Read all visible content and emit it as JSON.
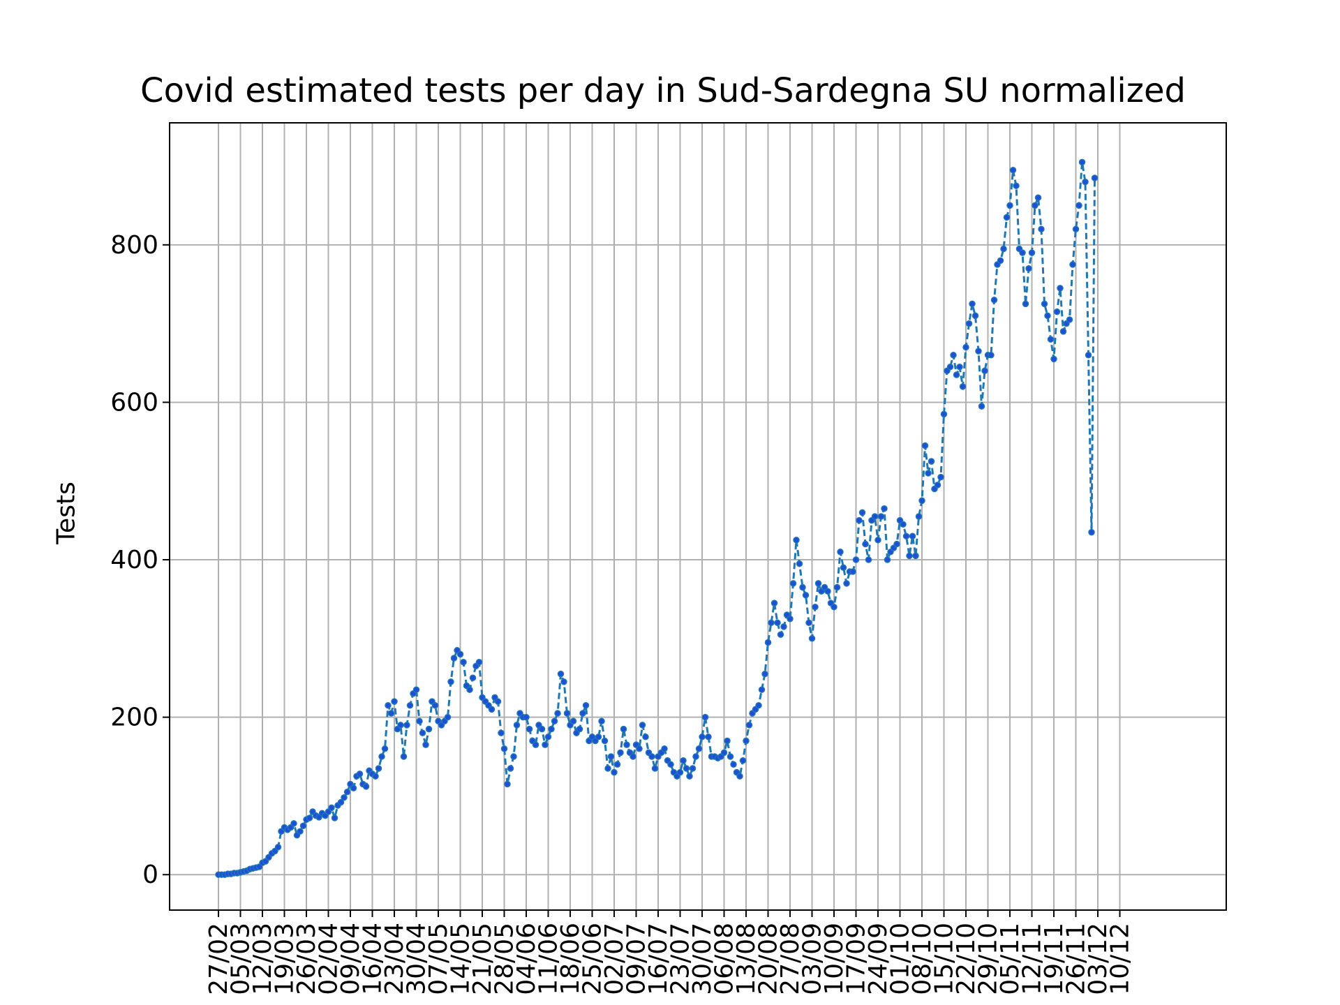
{
  "chart_data": {
    "type": "line",
    "title": "Covid estimated tests per day in Sud-Sardegna SU normalized",
    "xlabel": "",
    "ylabel": "Tests",
    "ylim": [
      -45,
      955
    ],
    "yticks": [
      0,
      200,
      400,
      600,
      800
    ],
    "x_tick_labels": [
      "27/02",
      "05/03",
      "12/03",
      "19/03",
      "26/03",
      "02/04",
      "09/04",
      "16/04",
      "23/04",
      "30/04",
      "07/05",
      "14/05",
      "21/05",
      "28/05",
      "04/06",
      "11/06",
      "18/06",
      "25/06",
      "02/07",
      "09/07",
      "16/07",
      "23/07",
      "30/07",
      "06/08",
      "13/08",
      "20/08",
      "27/08",
      "03/09",
      "10/09",
      "17/09",
      "24/09",
      "01/10",
      "08/10",
      "15/10",
      "22/10",
      "29/10",
      "05/11",
      "12/11",
      "19/11",
      "26/11",
      "03/12",
      "10/12"
    ],
    "grid": true,
    "line_color": "#1f77b4",
    "marker_color": "#1f4fd8",
    "series": [
      {
        "name": "",
        "values": [
          0,
          0,
          0,
          1,
          1,
          2,
          2,
          3,
          4,
          5,
          7,
          8,
          9,
          10,
          15,
          17,
          22,
          27,
          30,
          35,
          55,
          60,
          57,
          60,
          65,
          50,
          55,
          62,
          70,
          72,
          80,
          75,
          73,
          78,
          75,
          80,
          85,
          72,
          88,
          92,
          98,
          105,
          115,
          110,
          125,
          128,
          115,
          112,
          132,
          128,
          125,
          135,
          150,
          160,
          215,
          205,
          220,
          185,
          190,
          150,
          190,
          215,
          230,
          235,
          195,
          180,
          165,
          185,
          220,
          215,
          195,
          190,
          195,
          200,
          245,
          275,
          285,
          280,
          270,
          240,
          235,
          250,
          265,
          270,
          225,
          220,
          215,
          210,
          225,
          220,
          180,
          160,
          115,
          135,
          150,
          190,
          205,
          200,
          200,
          185,
          170,
          165,
          190,
          185,
          165,
          175,
          185,
          195,
          205,
          255,
          245,
          205,
          190,
          195,
          180,
          185,
          205,
          215,
          170,
          175,
          170,
          175,
          195,
          170,
          135,
          150,
          130,
          140,
          155,
          185,
          165,
          155,
          150,
          165,
          160,
          190,
          175,
          155,
          150,
          135,
          150,
          155,
          160,
          145,
          140,
          130,
          125,
          130,
          145,
          135,
          125,
          135,
          150,
          160,
          175,
          200,
          175,
          150,
          150,
          148,
          150,
          155,
          170,
          150,
          140,
          130,
          125,
          145,
          170,
          190,
          205,
          210,
          215,
          235,
          255,
          295,
          320,
          345,
          320,
          305,
          315,
          330,
          325,
          370,
          425,
          395,
          365,
          355,
          320,
          300,
          340,
          370,
          360,
          365,
          360,
          345,
          340,
          365,
          410,
          390,
          370,
          385,
          385,
          400,
          450,
          460,
          420,
          400,
          450,
          455,
          425,
          455,
          465,
          400,
          410,
          415,
          420,
          450,
          445,
          430,
          405,
          430,
          405,
          455,
          475,
          545,
          510,
          525,
          490,
          495,
          505,
          585,
          640,
          645,
          660,
          635,
          645,
          620,
          670,
          700,
          725,
          710,
          665,
          595,
          640,
          660,
          660,
          730,
          775,
          780,
          795,
          835,
          850,
          895,
          875,
          795,
          790,
          725,
          770,
          790,
          850,
          860,
          820,
          725,
          710,
          680,
          655,
          715,
          745,
          690,
          700,
          705,
          775,
          820,
          850,
          905,
          880,
          660,
          435,
          885
        ]
      }
    ]
  }
}
